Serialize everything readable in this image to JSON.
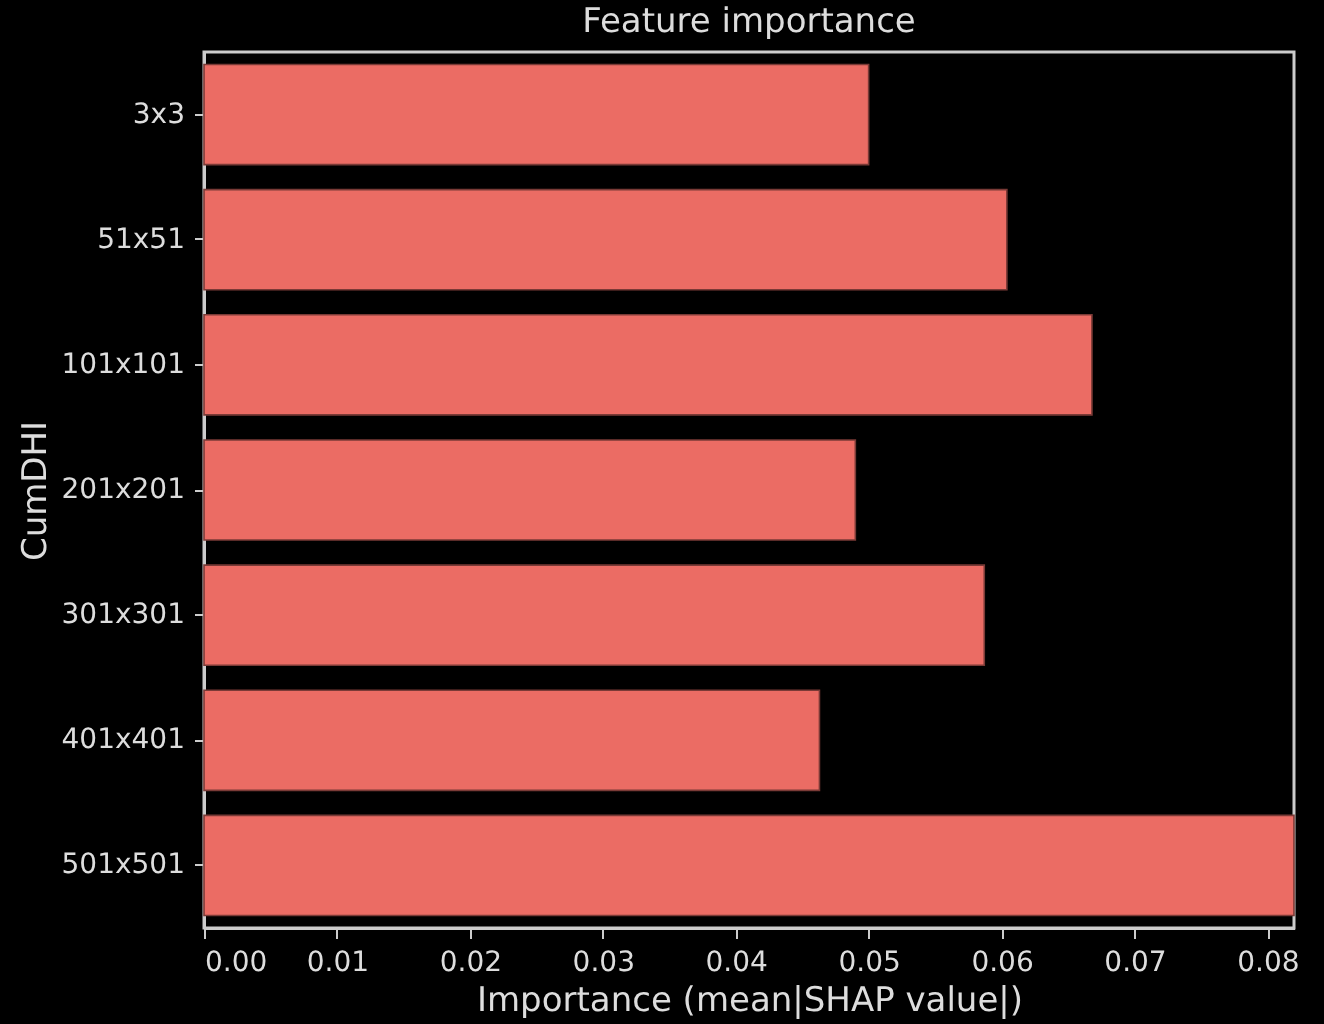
{
  "chart_data": {
    "type": "bar",
    "orientation": "horizontal",
    "title": "Feature importance",
    "xlabel": "Importance (mean|SHAP value|)",
    "ylabel": "CumDHI",
    "categories": [
      "3x3",
      "51x51",
      "101x101",
      "201x201",
      "301x301",
      "401x401",
      "501x501"
    ],
    "values": [
      0.05,
      0.0604,
      0.0668,
      0.049,
      0.0587,
      0.0463,
      0.082
    ],
    "color": "#eb6c64",
    "xlim": [
      0,
      0.082
    ],
    "xticks": [
      {
        "value": 0,
        "label": "0.00"
      },
      0.01,
      0.02,
      0.03,
      0.04,
      0.05,
      0.06,
      0.07,
      0.08
    ],
    "grid": false
  }
}
